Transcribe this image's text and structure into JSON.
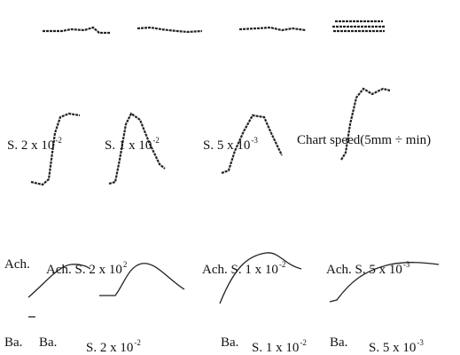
{
  "rows": [
    {
      "labels": [
        {
          "text": "S. 2 x 10",
          "sup": "-2"
        },
        {
          "text": "S. 1 x 10",
          "sup": "-2"
        },
        {
          "text": "S. 5 x 10",
          "sup": "-3"
        },
        {
          "text": "Chart speed(5mm ÷ min)"
        }
      ]
    },
    {
      "labels": [
        {
          "text": "Ach."
        },
        {
          "text": "Ach. S. 2 x 10",
          "sup": "2"
        },
        {
          "text": "Ach. S. 1 x 10",
          "sup": "-2"
        },
        {
          "text": "Ach. S. 5 x 10",
          "sup": "-3"
        }
      ]
    },
    {
      "labels": [
        {
          "text": "Ba."
        },
        {
          "text": "Ba."
        },
        {
          "text": "S. 2 x 10",
          "sup": "-2"
        },
        {
          "text": "Ba."
        },
        {
          "text": "S. 1 x 10",
          "sup": "-2"
        },
        {
          "text": "Ba."
        },
        {
          "text": "S. 5 x 10",
          "sup": "-3"
        }
      ]
    }
  ]
}
